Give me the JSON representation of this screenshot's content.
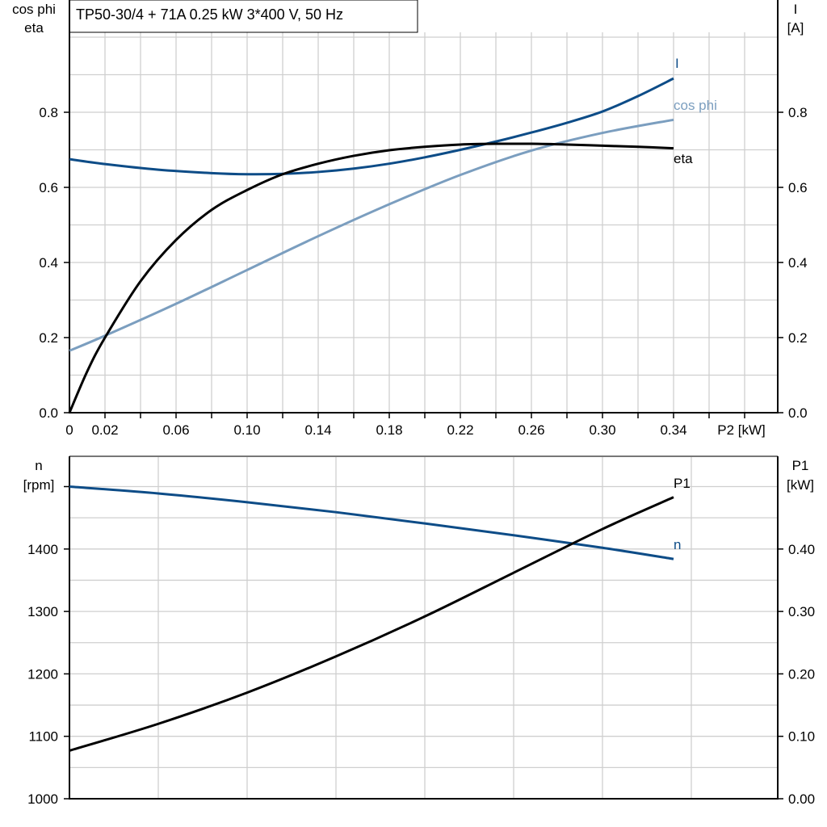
{
  "title": "TP50-30/4 + 71A   0.25 kW   3*400 V, 50 Hz",
  "colors": {
    "I": "#0d4c87",
    "cos_phi": "#7b9ebf",
    "eta": "#000000",
    "n": "#0d4c87",
    "P1": "#000000",
    "grid": "#cfcfcf"
  },
  "chart_data": [
    {
      "type": "line",
      "xlabel": "P2 [kW]",
      "ylabel_left": [
        "cos phi",
        "eta"
      ],
      "ylabel_right": [
        "I",
        "[A]"
      ],
      "xlim": [
        0,
        0.4
      ],
      "ylim": [
        0,
        1.0
      ],
      "x_tick_labels": [
        "0",
        "0.02",
        "0.06",
        "0.10",
        "0.14",
        "0.18",
        "0.22",
        "0.26",
        "0.30",
        "0.34"
      ],
      "y_tick_labels_left": [
        "0.0",
        "0.2",
        "0.4",
        "0.6",
        "0.8"
      ],
      "y_tick_labels_right": [
        "0.0",
        "0.2",
        "0.4",
        "0.6",
        "0.8"
      ],
      "grid": true,
      "series": [
        {
          "name": "I",
          "x": [
            0,
            0.02,
            0.05,
            0.08,
            0.1,
            0.12,
            0.14,
            0.16,
            0.18,
            0.2,
            0.22,
            0.24,
            0.26,
            0.28,
            0.3,
            0.32,
            0.34
          ],
          "y": [
            0.675,
            0.662,
            0.647,
            0.638,
            0.635,
            0.636,
            0.641,
            0.65,
            0.663,
            0.68,
            0.7,
            0.722,
            0.746,
            0.772,
            0.802,
            0.843,
            0.89
          ]
        },
        {
          "name": "cos phi",
          "x": [
            0,
            0.02,
            0.06,
            0.1,
            0.14,
            0.18,
            0.22,
            0.26,
            0.3,
            0.34
          ],
          "y": [
            0.165,
            0.205,
            0.29,
            0.38,
            0.47,
            0.555,
            0.633,
            0.698,
            0.745,
            0.78
          ]
        },
        {
          "name": "eta",
          "x": [
            0,
            0.01,
            0.02,
            0.04,
            0.06,
            0.08,
            0.1,
            0.12,
            0.14,
            0.16,
            0.18,
            0.2,
            0.22,
            0.24,
            0.26,
            0.28,
            0.3,
            0.32,
            0.34
          ],
          "y": [
            0.0,
            0.11,
            0.2,
            0.35,
            0.46,
            0.54,
            0.593,
            0.635,
            0.663,
            0.684,
            0.699,
            0.708,
            0.714,
            0.716,
            0.716,
            0.714,
            0.711,
            0.708,
            0.704
          ]
        }
      ]
    },
    {
      "type": "line",
      "ylabel_left": [
        "n",
        "[rpm]"
      ],
      "ylabel_right": [
        "P1",
        "[kW]"
      ],
      "xlim": [
        0,
        0.4
      ],
      "ylim_left": [
        1000,
        1550
      ],
      "ylim_right": [
        0,
        0.55
      ],
      "y_tick_labels_left": [
        "1000",
        "1100",
        "1200",
        "1300",
        "1400"
      ],
      "y_tick_labels_right": [
        "0.00",
        "0.10",
        "0.20",
        "0.30",
        "0.40"
      ],
      "grid": true,
      "series": [
        {
          "name": "n",
          "axis": "left",
          "x": [
            0,
            0.05,
            0.1,
            0.15,
            0.2,
            0.25,
            0.3,
            0.34
          ],
          "y": [
            1500,
            1489,
            1475,
            1459,
            1441,
            1422,
            1402,
            1384
          ]
        },
        {
          "name": "P1",
          "axis": "right",
          "x": [
            0,
            0.05,
            0.1,
            0.15,
            0.2,
            0.25,
            0.3,
            0.34
          ],
          "y": [
            0.077,
            0.12,
            0.17,
            0.228,
            0.292,
            0.362,
            0.432,
            0.483
          ]
        }
      ]
    }
  ]
}
